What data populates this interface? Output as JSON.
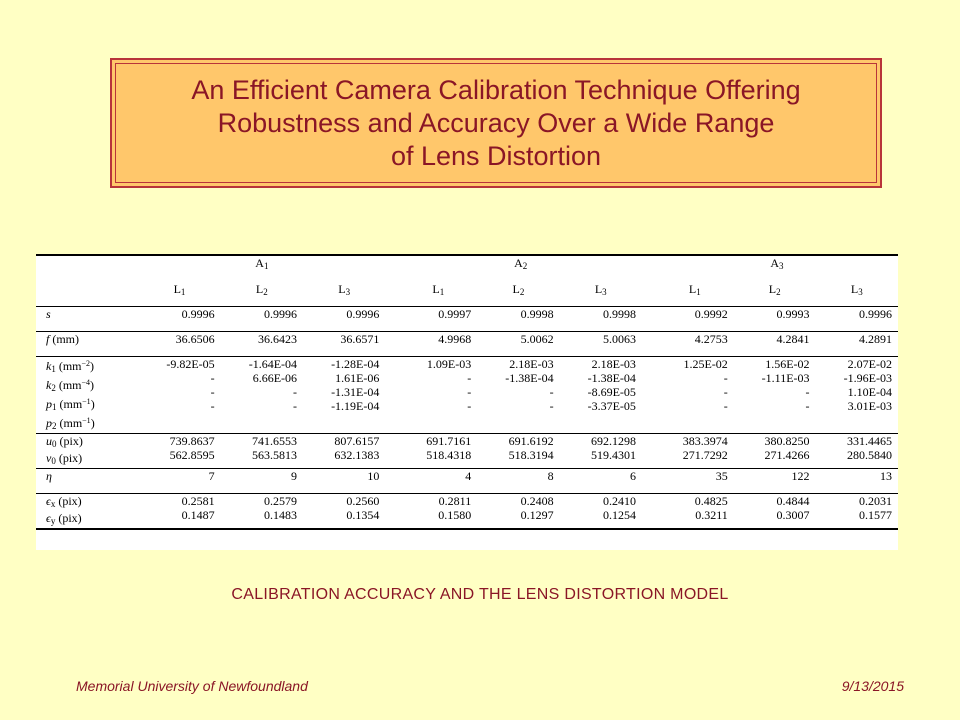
{
  "slide": {
    "title_lines": [
      "An Efficient Camera Calibration Technique Offering",
      "Robustness and Accuracy Over a Wide Range",
      "of Lens Distortion"
    ],
    "caption": "CALIBRATION ACCURACY AND THE LENS DISTORTION MODEL",
    "footer_left": "Memorial University of Newfoundland",
    "footer_right": "9/13/2015"
  },
  "table": {
    "groups": [
      {
        "name": "A",
        "sub": "1"
      },
      {
        "name": "A",
        "sub": "2"
      },
      {
        "name": "A",
        "sub": "3"
      }
    ],
    "columns": [
      {
        "name": "L",
        "sub": "1"
      },
      {
        "name": "L",
        "sub": "2"
      },
      {
        "name": "L",
        "sub": "3"
      },
      {
        "name": "L",
        "sub": "1"
      },
      {
        "name": "L",
        "sub": "2"
      },
      {
        "name": "L",
        "sub": "3"
      },
      {
        "name": "L",
        "sub": "1"
      },
      {
        "name": "L",
        "sub": "2"
      },
      {
        "name": "L",
        "sub": "3"
      }
    ],
    "blocks": [
      {
        "rows": [
          {
            "sym": "s",
            "sub": "",
            "unit": "",
            "sup": "",
            "unit_end": "",
            "values": [
              "0.9996",
              "0.9996",
              "0.9996",
              "0.9997",
              "0.9998",
              "0.9998",
              "0.9992",
              "0.9993",
              "0.9996"
            ]
          }
        ]
      },
      {
        "rows": [
          {
            "sym": "f",
            "sub": "",
            "unit": " (mm)",
            "sup": "",
            "unit_end": "",
            "values": [
              "36.6506",
              "36.6423",
              "36.6571",
              "4.9968",
              "5.0062",
              "5.0063",
              "4.2753",
              "4.2841",
              "4.2891"
            ]
          }
        ]
      },
      {
        "rows": [
          {
            "sym": "k",
            "sub": "1",
            "unit": " (mm",
            "sup": "−2",
            "unit_end": ")",
            "values": [
              "-9.82E-05",
              "-1.64E-04",
              "-1.28E-04",
              "1.09E-03",
              "2.18E-03",
              "2.18E-03",
              "1.25E-02",
              "1.56E-02",
              "2.07E-02"
            ]
          },
          {
            "sym": "k",
            "sub": "2",
            "unit": " (mm",
            "sup": "−4",
            "unit_end": ")",
            "values": [
              "-",
              "6.66E-06",
              "1.61E-06",
              "-",
              "-1.38E-04",
              "-1.38E-04",
              "-",
              "-1.11E-03",
              "-1.96E-03"
            ]
          },
          {
            "sym": "p",
            "sub": "1",
            "unit": " (mm",
            "sup": "−1",
            "unit_end": ")",
            "values": [
              "-",
              "-",
              "-1.31E-04",
              "-",
              "-",
              "-8.69E-05",
              "-",
              "-",
              "1.10E-04"
            ]
          },
          {
            "sym": "p",
            "sub": "2",
            "unit": " (mm",
            "sup": "−1",
            "unit_end": ")",
            "values": [
              "-",
              "-",
              "-1.19E-04",
              "-",
              "-",
              "-3.37E-05",
              "-",
              "-",
              "3.01E-03"
            ]
          }
        ]
      },
      {
        "rows": [
          {
            "sym": "u",
            "sub": "0",
            "unit": " (pix)",
            "sup": "",
            "unit_end": "",
            "values": [
              "739.8637",
              "741.6553",
              "807.6157",
              "691.7161",
              "691.6192",
              "692.1298",
              "383.3974",
              "380.8250",
              "331.4465"
            ]
          },
          {
            "sym": "v",
            "sub": "0",
            "unit": " (pix)",
            "sup": "",
            "unit_end": "",
            "values": [
              "562.8595",
              "563.5813",
              "632.1383",
              "518.4318",
              "518.3194",
              "519.4301",
              "271.7292",
              "271.4266",
              "280.5840"
            ]
          }
        ]
      },
      {
        "rows": [
          {
            "sym": "η",
            "sub": "",
            "unit": "",
            "sup": "",
            "unit_end": "",
            "values": [
              "7",
              "9",
              "10",
              "4",
              "8",
              "6",
              "35",
              "122",
              "13"
            ]
          }
        ]
      },
      {
        "rows": [
          {
            "sym": "ϵ",
            "sub": "x",
            "unit": " (pix)",
            "sup": "",
            "unit_end": "",
            "values": [
              "0.2581",
              "0.2579",
              "0.2560",
              "0.2811",
              "0.2408",
              "0.2410",
              "0.4825",
              "0.4844",
              "0.2031"
            ]
          },
          {
            "sym": "ϵ",
            "sub": "y",
            "unit": " (pix)",
            "sup": "",
            "unit_end": "",
            "values": [
              "0.1487",
              "0.1483",
              "0.1354",
              "0.1580",
              "0.1297",
              "0.1254",
              "0.3211",
              "0.3007",
              "0.1577"
            ]
          }
        ]
      }
    ]
  }
}
